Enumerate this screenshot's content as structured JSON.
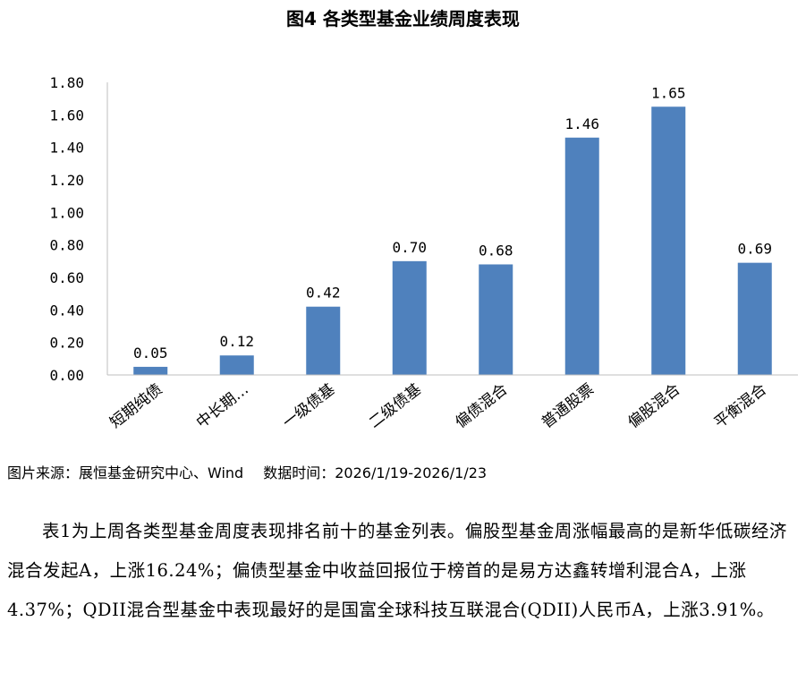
{
  "figure_title": "图4 各类型基金业绩周度表现",
  "source_label": "图片来源：展恒基金研究中心、Wind",
  "data_time_label": "数据时间：2026/1/19-2026/1/23",
  "paragraph": "表1为上周各类型基金周度表现排名前十的基金列表。偏股型基金周涨幅最高的是新华低碳经济混合发起A，上涨16.24%；偏债型基金中收益回报位于榜首的是易方达鑫转增利混合A，上涨4.37%；QDII混合型基金中表现最好的是国富全球科技互联混合(QDII)人民币A，上涨3.91%。",
  "chart_data": {
    "type": "bar",
    "categories": [
      "短期纯债",
      "中长期…",
      "一级债基",
      "二级债基",
      "偏债混合",
      "普通股票",
      "偏股混合",
      "平衡混合"
    ],
    "values": [
      0.05,
      0.12,
      0.42,
      0.7,
      0.68,
      1.46,
      1.65,
      0.69
    ],
    "data_labels": [
      "0.05",
      "0.12",
      "0.42",
      "0.70",
      "0.68",
      "1.46",
      "1.65",
      "0.69"
    ],
    "ylim": [
      0,
      1.8
    ],
    "yticks": [
      0,
      0.2,
      0.4,
      0.6,
      0.8,
      1.0,
      1.2,
      1.4,
      1.6,
      1.8
    ],
    "ytick_labels": [
      "0.00",
      "0.20",
      "0.40",
      "0.60",
      "0.80",
      "1.00",
      "1.20",
      "1.40",
      "1.60",
      "1.80"
    ],
    "bar_color": "#4f81bd",
    "axis_color": "#bfbfbf",
    "grid": false,
    "legend": "none"
  }
}
